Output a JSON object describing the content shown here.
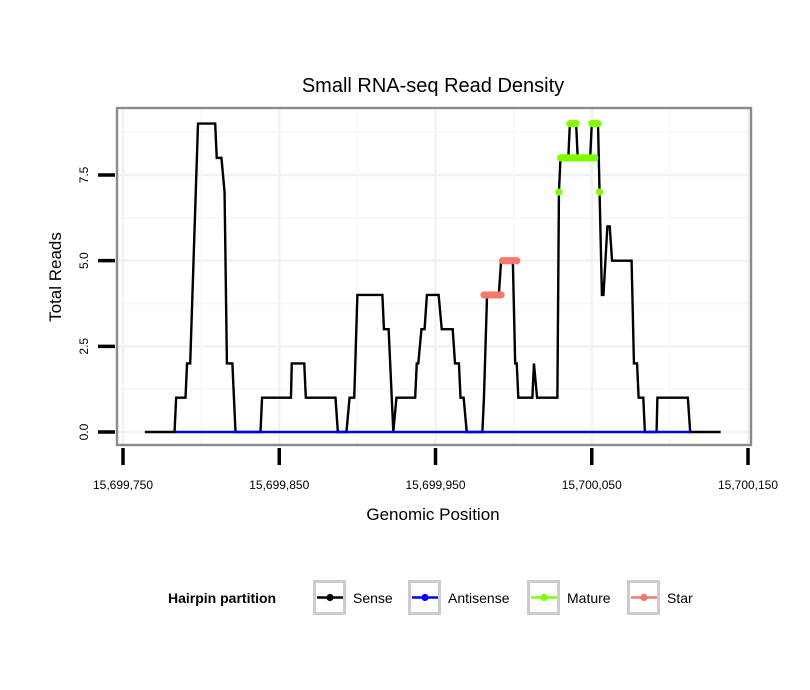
{
  "chart_data": {
    "type": "line",
    "title": "Small RNA-seq Read Density",
    "xlabel": "Genomic Position",
    "ylabel": "Total Reads",
    "xlim": [
      15699730,
      15700155
    ],
    "ylim": [
      -0.35,
      9.45
    ],
    "grid": true,
    "x_ticks": [
      15699750,
      15699850,
      15699950,
      15700050,
      15700150
    ],
    "x_tick_labels": [
      "15,699,750",
      "15,699,850",
      "15,699,950",
      "15,700,050",
      "15,700,150"
    ],
    "y_ticks": [
      0,
      2.5,
      5,
      7.5
    ],
    "y_tick_labels": [
      "0.0",
      "2.5",
      "5.0",
      "7.5"
    ],
    "legend": {
      "title": "Hairpin partition",
      "position": "bottom",
      "entries": [
        {
          "label": "Sense",
          "color": "#000000"
        },
        {
          "label": "Antisense",
          "color": "#0000ff"
        },
        {
          "label": "Mature",
          "color": "#7fff00"
        },
        {
          "label": "Star",
          "color": "#f8766d"
        }
      ]
    },
    "series": [
      {
        "name": "Sense",
        "color": "#000000",
        "style": "line",
        "points": [
          [
            15699764,
            0
          ],
          [
            15699783,
            0
          ],
          [
            15699784,
            1
          ],
          [
            15699790,
            1
          ],
          [
            15699791,
            2
          ],
          [
            15699793,
            2
          ],
          [
            15699798,
            9
          ],
          [
            15699809,
            9
          ],
          [
            15699810,
            8
          ],
          [
            15699813,
            8
          ],
          [
            15699815,
            7
          ],
          [
            15699816.5,
            2
          ],
          [
            15699820,
            2
          ],
          [
            15699822,
            0
          ],
          [
            15699838,
            0
          ],
          [
            15699839,
            1
          ],
          [
            15699857.5,
            1
          ],
          [
            15699858,
            2
          ],
          [
            15699866,
            2
          ],
          [
            15699867,
            1
          ],
          [
            15699886,
            1
          ],
          [
            15699887.5,
            0
          ],
          [
            15699893,
            0
          ],
          [
            15699895,
            1
          ],
          [
            15699898,
            1
          ],
          [
            15699900,
            4
          ],
          [
            15699916,
            4
          ],
          [
            15699917,
            3
          ],
          [
            15699920,
            3
          ],
          [
            15699922,
            1
          ],
          [
            15699923,
            0
          ],
          [
            15699925,
            1
          ],
          [
            15699937,
            1
          ],
          [
            15699938,
            2
          ],
          [
            15699939,
            2
          ],
          [
            15699941,
            3
          ],
          [
            15699943,
            3
          ],
          [
            15699944.5,
            4
          ],
          [
            15699952,
            4
          ],
          [
            15699954,
            3
          ],
          [
            15699961,
            3
          ],
          [
            15699962.5,
            2
          ],
          [
            15699965,
            2
          ],
          [
            15699966,
            1
          ],
          [
            15699968,
            1
          ],
          [
            15699970,
            0
          ],
          [
            15699980,
            0
          ],
          [
            15699981,
            1
          ],
          [
            15699983,
            4
          ],
          [
            15699990.5,
            4
          ],
          [
            15699992,
            5
          ],
          [
            15699999.5,
            5
          ],
          [
            15700001,
            2
          ],
          [
            15700002,
            2
          ],
          [
            15700003,
            1
          ],
          [
            15700012,
            1
          ],
          [
            15700013,
            2
          ],
          [
            15700015,
            1
          ],
          [
            15700028,
            1
          ],
          [
            15700029,
            7
          ],
          [
            15700030,
            8
          ],
          [
            15700035,
            8
          ],
          [
            15700036,
            9
          ],
          [
            15700040,
            9
          ],
          [
            15700041,
            8
          ],
          [
            15700049,
            8
          ],
          [
            15700050,
            9
          ],
          [
            15700054,
            9
          ],
          [
            15700055,
            7
          ],
          [
            15700056.5,
            4
          ],
          [
            15700057.5,
            4
          ],
          [
            15700060,
            6
          ],
          [
            15700061.5,
            6
          ],
          [
            15700063,
            5
          ],
          [
            15700075.5,
            5
          ],
          [
            15700077,
            2
          ],
          [
            15700079,
            2
          ],
          [
            15700080,
            1
          ],
          [
            15700083,
            1
          ],
          [
            15700084,
            0
          ],
          [
            15700091.5,
            0
          ],
          [
            15700092,
            1
          ],
          [
            15700111.5,
            1
          ],
          [
            15700113,
            0
          ],
          [
            15700132.5,
            0
          ]
        ]
      },
      {
        "name": "Antisense",
        "color": "#0000ff",
        "style": "line",
        "points": [
          [
            15699783,
            0
          ],
          [
            15700113,
            0
          ]
        ]
      },
      {
        "name": "Mature",
        "color": "#7fff00",
        "style": "points",
        "points": [
          [
            15700029,
            7
          ],
          [
            15700030,
            8
          ],
          [
            15700031,
            8
          ],
          [
            15700032,
            8
          ],
          [
            15700033,
            8
          ],
          [
            15700034,
            8
          ],
          [
            15700035,
            8
          ],
          [
            15700036,
            8
          ],
          [
            15700037,
            8
          ],
          [
            15700038,
            8
          ],
          [
            15700039,
            8
          ],
          [
            15700040,
            8
          ],
          [
            15700041,
            8
          ],
          [
            15700042,
            8
          ],
          [
            15700043,
            8
          ],
          [
            15700044,
            8
          ],
          [
            15700045,
            8
          ],
          [
            15700046,
            8
          ],
          [
            15700047,
            8
          ],
          [
            15700048,
            8
          ],
          [
            15700049,
            8
          ],
          [
            15700050,
            8
          ],
          [
            15700051,
            8
          ],
          [
            15700052,
            8
          ],
          [
            15700036,
            9
          ],
          [
            15700037,
            9
          ],
          [
            15700038,
            9
          ],
          [
            15700039,
            9
          ],
          [
            15700040,
            9
          ],
          [
            15700050,
            9
          ],
          [
            15700051,
            9
          ],
          [
            15700052,
            9
          ],
          [
            15700053,
            9
          ],
          [
            15700054,
            9
          ],
          [
            15700055,
            7
          ]
        ]
      },
      {
        "name": "Star",
        "color": "#f8766d",
        "style": "points",
        "points": [
          [
            15699981,
            4
          ],
          [
            15699982,
            4
          ],
          [
            15699983,
            4
          ],
          [
            15699984,
            4
          ],
          [
            15699985,
            4
          ],
          [
            15699986,
            4
          ],
          [
            15699987,
            4
          ],
          [
            15699988,
            4
          ],
          [
            15699989,
            4
          ],
          [
            15699990,
            4
          ],
          [
            15699991,
            4
          ],
          [
            15699992,
            4
          ],
          [
            15699993,
            5
          ],
          [
            15699994,
            5
          ],
          [
            15699995,
            5
          ],
          [
            15699996,
            5
          ],
          [
            15699997,
            5
          ],
          [
            15699998,
            5
          ],
          [
            15699999,
            5
          ],
          [
            15700000,
            5
          ],
          [
            15700001,
            5
          ],
          [
            15700002,
            5
          ]
        ]
      }
    ]
  }
}
